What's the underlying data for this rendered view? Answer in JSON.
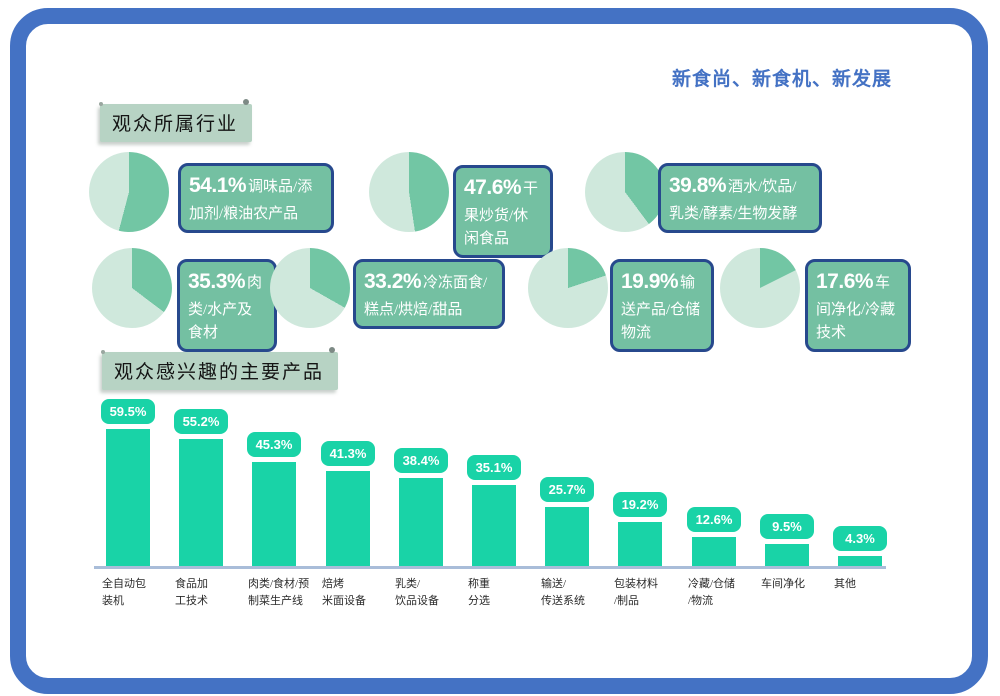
{
  "header": {
    "slogan": "新食尚、新食机、新发展"
  },
  "sections": {
    "industries": {
      "title": "观众所属行业"
    },
    "products": {
      "title": "观众感兴趣的主要产品"
    }
  },
  "colors": {
    "frame_blue": "#4472c4",
    "slogan_blue": "#4472c4",
    "pie_dark_green": "#72c6a4",
    "pie_light_green": "#cfe8dc",
    "label_box_green": "#74c0a2",
    "label_box_border_navy": "#27498d",
    "bar_teal": "#19d3a7",
    "axis_line_blue": "#a9bdd9",
    "section_title_bg": "#b7d3c4"
  },
  "chart_data": [
    {
      "type": "pie",
      "title": "观众所属行业",
      "legend_position": "right-of-each-pie",
      "note": "seven mini donut-less pies; dark-green slice = percentage, light-green = remainder; slice starts at 12 o'clock clockwise",
      "items": [
        {
          "label": "调味品/添加剂/粮油农产品",
          "value": 54.1
        },
        {
          "label": "干果炒货/休闲食品",
          "value": 47.6
        },
        {
          "label": "酒水/饮品/乳类/酵素/生物发酵",
          "value": 39.8
        },
        {
          "label": "肉类/水产及食材",
          "value": 35.3
        },
        {
          "label": "冷冻面食/糕点/烘焙/甜品",
          "value": 33.2
        },
        {
          "label": "输送产品/仓储物流",
          "value": 19.9
        },
        {
          "label": "车间净化/冷藏技术",
          "value": 17.6
        }
      ]
    },
    {
      "type": "bar",
      "title": "观众感兴趣的主要产品",
      "categories": [
        "全自动包装机",
        "食品加工技术",
        "肉类/食材/预制菜生产线",
        "焙烤米面设备",
        "乳类/饮品设备",
        "称重分选",
        "输送/传送系统",
        "包装材料/制品",
        "冷藏/仓储/物流",
        "车间净化",
        "其他"
      ],
      "category_lines": [
        "全自动包\n装机",
        "食品加\n工技术",
        "肉类/食材/预\n制菜生产线",
        "焙烤\n米面设备",
        "乳类/\n饮品设备",
        "称重\n分选",
        "输送/\n传送系统",
        "包装材料\n/制品",
        "冷藏/仓储\n/物流",
        "车间净化",
        "其他"
      ],
      "values": [
        59.5,
        55.2,
        45.3,
        41.3,
        38.4,
        35.1,
        25.7,
        19.2,
        12.6,
        9.5,
        4.3
      ],
      "value_label_format": "percent badge above each bar",
      "xlabel": "",
      "ylabel": "",
      "ylim": [
        0,
        65
      ],
      "grid": false
    }
  ]
}
